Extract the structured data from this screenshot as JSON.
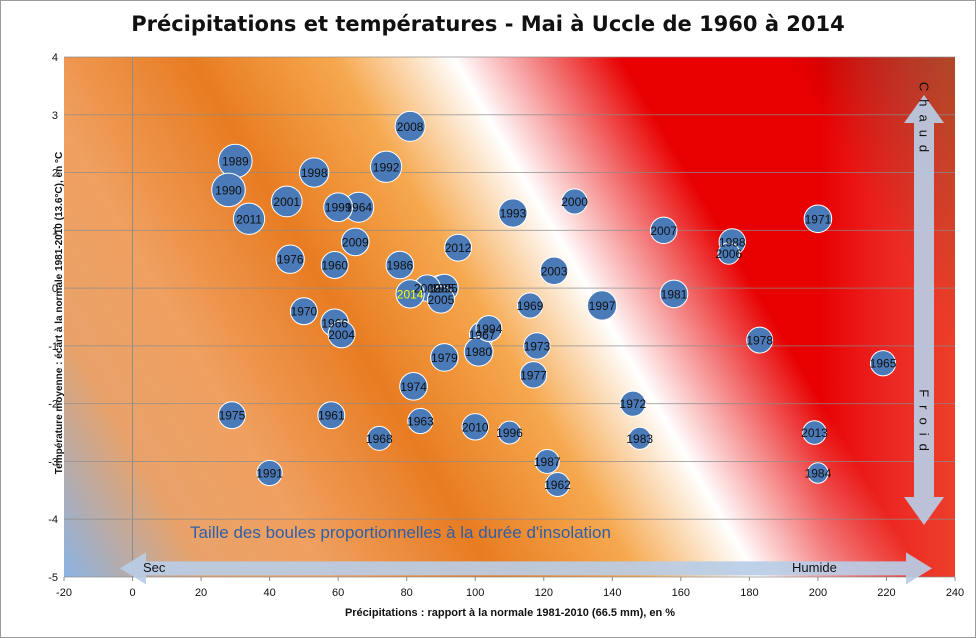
{
  "chart_data": {
    "type": "scatter",
    "title": "Précipitations et températures - Mai à Uccle de 1960 à 2014",
    "xlabel": "Précipitations  : rapport à la normale 1981-2010 (66.5 mm), en %",
    "ylabel": "Température moyenne : écart à  la normale 1981-2010 (13.6°C), en °C",
    "xlim": [
      -20,
      240
    ],
    "ylim": [
      -5,
      4
    ],
    "x_ticks": [
      "-20",
      "0",
      "20",
      "40",
      "60",
      "80",
      "100",
      "120",
      "140",
      "160",
      "180",
      "200",
      "220",
      "240"
    ],
    "y_ticks": [
      "-5",
      "-4",
      "-3",
      "-2",
      "-1",
      "0",
      "1",
      "2",
      "3",
      "4"
    ],
    "grid": true,
    "legend": "none",
    "annotations": {
      "size_note": "Taille des boules proportionnelles  à la durée d'insolation",
      "dry": "Sec",
      "wet": "Humide",
      "warm": "Chaud",
      "cold": "Froid"
    },
    "colors": {
      "bubble": "#4a7ab8",
      "bubble_edge": "#ffffff",
      "highlight_label": "#ffff00",
      "hot": "#d90000",
      "dry_cold": "#8ab4e4"
    },
    "points": [
      {
        "label": "1960",
        "x": 59,
        "y": 0.4,
        "size": 0.62
      },
      {
        "label": "1961",
        "x": 58,
        "y": -2.2,
        "size": 0.62
      },
      {
        "label": "1962",
        "x": 124,
        "y": -3.4,
        "size": 0.5
      },
      {
        "label": "1963",
        "x": 84,
        "y": -2.3,
        "size": 0.55
      },
      {
        "label": "1964",
        "x": 66,
        "y": 1.4,
        "size": 0.75
      },
      {
        "label": "1965",
        "x": 219,
        "y": -1.3,
        "size": 0.55
      },
      {
        "label": "1966",
        "x": 59,
        "y": -0.6,
        "size": 0.65
      },
      {
        "label": "1967",
        "x": 102,
        "y": -0.8,
        "size": 0.55
      },
      {
        "label": "1968",
        "x": 72,
        "y": -2.6,
        "size": 0.5
      },
      {
        "label": "1969",
        "x": 116,
        "y": -0.3,
        "size": 0.55
      },
      {
        "label": "1970",
        "x": 50,
        "y": -0.4,
        "size": 0.62
      },
      {
        "label": "1971",
        "x": 200,
        "y": 1.2,
        "size": 0.65
      },
      {
        "label": "1972",
        "x": 146,
        "y": -2.0,
        "size": 0.55
      },
      {
        "label": "1973",
        "x": 118,
        "y": -1.0,
        "size": 0.6
      },
      {
        "label": "1974",
        "x": 82,
        "y": -1.7,
        "size": 0.65
      },
      {
        "label": "1975",
        "x": 29,
        "y": -2.2,
        "size": 0.62
      },
      {
        "label": "1976",
        "x": 46,
        "y": 0.5,
        "size": 0.68
      },
      {
        "label": "1977",
        "x": 117,
        "y": -1.5,
        "size": 0.6
      },
      {
        "label": "1978",
        "x": 183,
        "y": -0.9,
        "size": 0.58
      },
      {
        "label": "1979",
        "x": 91,
        "y": -1.2,
        "size": 0.65
      },
      {
        "label": "1980",
        "x": 101,
        "y": -1.1,
        "size": 0.7
      },
      {
        "label": "1981",
        "x": 158,
        "y": -0.1,
        "size": 0.65
      },
      {
        "label": "1983",
        "x": 148,
        "y": -2.6,
        "size": 0.42
      },
      {
        "label": "1984",
        "x": 200,
        "y": -3.2,
        "size": 0.35
      },
      {
        "label": "1985",
        "x": 90,
        "y": 0.0,
        "size": 0.6
      },
      {
        "label": "1986",
        "x": 78,
        "y": 0.4,
        "size": 0.65
      },
      {
        "label": "1987",
        "x": 121,
        "y": -3.0,
        "size": 0.5
      },
      {
        "label": "1988",
        "x": 175,
        "y": 0.8,
        "size": 0.6
      },
      {
        "label": "1989",
        "x": 30,
        "y": 2.2,
        "size": 0.9
      },
      {
        "label": "1990",
        "x": 28,
        "y": 1.7,
        "size": 0.9
      },
      {
        "label": "1991",
        "x": 40,
        "y": -3.2,
        "size": 0.55
      },
      {
        "label": "1992",
        "x": 74,
        "y": 2.1,
        "size": 0.8
      },
      {
        "label": "1993",
        "x": 111,
        "y": 1.3,
        "size": 0.68
      },
      {
        "label": "1994",
        "x": 104,
        "y": -0.7,
        "size": 0.58
      },
      {
        "label": "1995",
        "x": 91,
        "y": 0.0,
        "size": 0.65
      },
      {
        "label": "1996",
        "x": 110,
        "y": -2.5,
        "size": 0.45
      },
      {
        "label": "1997",
        "x": 137,
        "y": -0.3,
        "size": 0.72
      },
      {
        "label": "1998",
        "x": 53,
        "y": 2.0,
        "size": 0.72
      },
      {
        "label": "1999",
        "x": 60,
        "y": 1.4,
        "size": 0.7
      },
      {
        "label": "2000",
        "x": 129,
        "y": 1.5,
        "size": 0.55
      },
      {
        "label": "2001",
        "x": 45,
        "y": 1.5,
        "size": 0.78
      },
      {
        "label": "2002",
        "x": 86,
        "y": 0.0,
        "size": 0.6
      },
      {
        "label": "2003",
        "x": 123,
        "y": 0.3,
        "size": 0.65
      },
      {
        "label": "2004",
        "x": 61,
        "y": -0.8,
        "size": 0.62
      },
      {
        "label": "2005",
        "x": 90,
        "y": -0.2,
        "size": 0.62
      },
      {
        "label": "2006",
        "x": 174,
        "y": 0.6,
        "size": 0.4
      },
      {
        "label": "2007",
        "x": 155,
        "y": 1.0,
        "size": 0.6
      },
      {
        "label": "2008",
        "x": 81,
        "y": 2.8,
        "size": 0.75
      },
      {
        "label": "2009",
        "x": 65,
        "y": 0.8,
        "size": 0.65
      },
      {
        "label": "2010",
        "x": 100,
        "y": -2.4,
        "size": 0.6
      },
      {
        "label": "2011",
        "x": 34,
        "y": 1.2,
        "size": 0.8
      },
      {
        "label": "2012",
        "x": 95,
        "y": 0.7,
        "size": 0.62
      },
      {
        "label": "2013",
        "x": 199,
        "y": -2.5,
        "size": 0.48
      },
      {
        "label": "2014",
        "x": 81,
        "y": -0.1,
        "size": 0.68,
        "highlight": true
      }
    ]
  }
}
